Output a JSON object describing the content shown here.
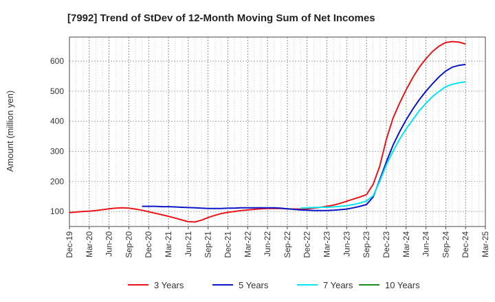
{
  "chart_data": {
    "type": "line",
    "title": "[7992]  Trend of StDev of 12-Month Moving Sum of Net Incomes",
    "ylabel": "Amount (million yen)",
    "xlabel": "",
    "ylim": [
      50,
      680
    ],
    "yticks": [
      100,
      200,
      300,
      400,
      500,
      600
    ],
    "x_ticks": [
      "Dec-19",
      "Mar-20",
      "Jun-20",
      "Sep-20",
      "Dec-20",
      "Mar-21",
      "Jun-21",
      "Sep-21",
      "Dec-21",
      "Mar-22",
      "Jun-22",
      "Sep-22",
      "Dec-22",
      "Mar-23",
      "Jun-23",
      "Sep-23",
      "Dec-23",
      "Mar-24",
      "Jun-24",
      "Sep-24",
      "Dec-24",
      "Mar-25"
    ],
    "grid": true,
    "legend_position": "bottom",
    "series": [
      {
        "name": "3 Years",
        "color": "#e8141a",
        "x": [
          "Dec-19",
          "Jan-20",
          "Feb-20",
          "Mar-20",
          "Apr-20",
          "May-20",
          "Jun-20",
          "Jul-20",
          "Aug-20",
          "Sep-20",
          "Oct-20",
          "Nov-20",
          "Dec-20",
          "Jan-21",
          "Feb-21",
          "Mar-21",
          "Apr-21",
          "May-21",
          "Jun-21",
          "Jul-21",
          "Aug-21",
          "Sep-21",
          "Oct-21",
          "Nov-21",
          "Dec-21",
          "Jan-22",
          "Feb-22",
          "Mar-22",
          "Apr-22",
          "May-22",
          "Jun-22",
          "Jul-22",
          "Aug-22",
          "Sep-22",
          "Oct-22",
          "Nov-22",
          "Dec-22",
          "Jan-23",
          "Feb-23",
          "Mar-23",
          "Apr-23",
          "May-23",
          "Jun-23",
          "Jul-23",
          "Aug-23",
          "Sep-23",
          "Oct-23",
          "Nov-23",
          "Dec-23",
          "Jan-24",
          "Feb-24",
          "Mar-24",
          "Apr-24",
          "May-24",
          "Jun-24",
          "Jul-24",
          "Aug-24",
          "Sep-24",
          "Oct-24",
          "Nov-24",
          "Dec-24"
        ],
        "values": [
          96,
          98,
          100,
          101,
          103,
          106,
          109,
          111,
          112,
          111,
          108,
          104,
          99,
          94,
          89,
          84,
          78,
          72,
          66,
          65,
          71,
          80,
          87,
          93,
          97,
          100,
          103,
          105,
          107,
          109,
          110,
          110,
          110,
          109,
          108,
          108,
          109,
          111,
          114,
          117,
          121,
          127,
          134,
          141,
          148,
          156,
          190,
          250,
          340,
          410,
          460,
          505,
          545,
          580,
          608,
          632,
          650,
          662,
          665,
          663,
          657
        ]
      },
      {
        "name": "5 Years",
        "color": "#0a14c8",
        "x": [
          "Nov-20",
          "Dec-20",
          "Jan-21",
          "Feb-21",
          "Mar-21",
          "Apr-21",
          "May-21",
          "Jun-21",
          "Jul-21",
          "Aug-21",
          "Sep-21",
          "Oct-21",
          "Nov-21",
          "Dec-21",
          "Jan-22",
          "Feb-22",
          "Mar-22",
          "Apr-22",
          "May-22",
          "Jun-22",
          "Jul-22",
          "Aug-22",
          "Sep-22",
          "Oct-22",
          "Nov-22",
          "Dec-22",
          "Jan-23",
          "Feb-23",
          "Mar-23",
          "Apr-23",
          "May-23",
          "Jun-23",
          "Jul-23",
          "Aug-23",
          "Sep-23",
          "Oct-23",
          "Nov-23",
          "Dec-23",
          "Jan-24",
          "Feb-24",
          "Mar-24",
          "Apr-24",
          "May-24",
          "Jun-24",
          "Jul-24",
          "Aug-24",
          "Sep-24",
          "Oct-24",
          "Nov-24",
          "Dec-24"
        ],
        "values": [
          117,
          117,
          117,
          116,
          116,
          115,
          114,
          113,
          112,
          111,
          110,
          110,
          110,
          111,
          111,
          112,
          112,
          112,
          112,
          112,
          112,
          111,
          109,
          107,
          105,
          104,
          103,
          103,
          103,
          104,
          106,
          108,
          112,
          117,
          123,
          148,
          205,
          265,
          320,
          365,
          405,
          440,
          472,
          500,
          525,
          548,
          567,
          580,
          586,
          589
        ]
      },
      {
        "name": "7 Years",
        "color": "#00e5ee",
        "x": [
          "Nov-22",
          "Dec-22",
          "Jan-23",
          "Feb-23",
          "Mar-23",
          "Apr-23",
          "May-23",
          "Jun-23",
          "Jul-23",
          "Aug-23",
          "Sep-23",
          "Oct-23",
          "Nov-23",
          "Dec-23",
          "Jan-24",
          "Feb-24",
          "Mar-24",
          "Apr-24",
          "May-24",
          "Jun-24",
          "Jul-24",
          "Aug-24",
          "Sep-24",
          "Oct-24",
          "Nov-24",
          "Dec-24"
        ],
        "values": [
          111,
          112,
          113,
          114,
          114,
          115,
          117,
          119,
          123,
          128,
          135,
          152,
          200,
          255,
          300,
          340,
          375,
          405,
          435,
          460,
          482,
          500,
          515,
          523,
          528,
          531
        ]
      },
      {
        "name": "10 Years",
        "color": "#1e8a1e",
        "x": [],
        "values": []
      }
    ]
  }
}
